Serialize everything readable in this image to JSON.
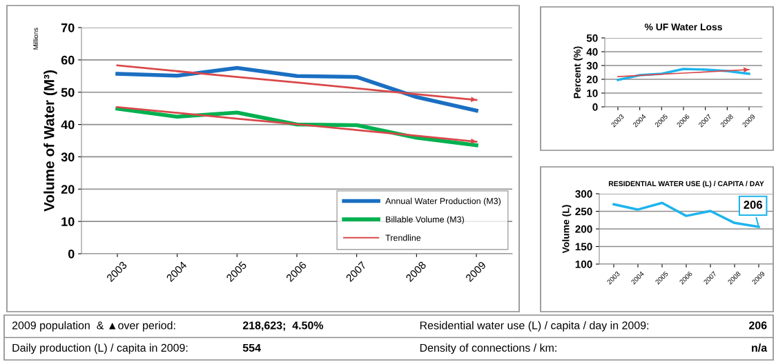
{
  "chart_data": [
    {
      "type": "line",
      "categories": [
        "2003",
        "2004",
        "2005",
        "2006",
        "2007",
        "2008",
        "2009"
      ],
      "ylabel": "Volume of Water (M³)",
      "ylim": [
        0,
        70
      ],
      "yticks": [
        0,
        10,
        20,
        30,
        40,
        50,
        60,
        70
      ],
      "grid": "y",
      "legend": "bottom right",
      "annotations": [
        "Millions"
      ],
      "series": [
        {
          "name": "Annual Water Production (M3)",
          "color": "#1a6fc2",
          "values": [
            55.7,
            55.1,
            57.5,
            55.0,
            54.7,
            48.5,
            44.3
          ]
        },
        {
          "name": "Billable Volume (M3)",
          "color": "#00b050",
          "values": [
            44.9,
            42.4,
            43.7,
            40.0,
            39.8,
            35.9,
            33.6
          ]
        },
        {
          "name": "Trendline",
          "color": "#d9484a",
          "line_style": "solid",
          "values": [
            58.3,
            56.5,
            54.7,
            53.0,
            51.2,
            49.4,
            47.6
          ]
        },
        {
          "color": "#d9484a",
          "line_style": "solid",
          "values": [
            45.4,
            43.6,
            41.8,
            40.1,
            38.3,
            36.5,
            34.7
          ]
        }
      ]
    },
    {
      "type": "line",
      "title": "% UF Water Loss",
      "categories": [
        "2003",
        "2004",
        "2005",
        "2006",
        "2007",
        "2008",
        "2009"
      ],
      "ylabel": "Percent (%)",
      "ylim": [
        0,
        50
      ],
      "yticks": [
        0,
        10,
        20,
        30,
        40,
        50
      ],
      "grid": "y",
      "series": [
        {
          "color": "#1db4ec",
          "values": [
            19.5,
            23.0,
            24.0,
            27.5,
            27.0,
            26.0,
            24.0
          ]
        },
        {
          "color": "#d9484a",
          "line_style": "solid",
          "values": [
            22.0,
            22.8,
            23.7,
            24.5,
            25.3,
            26.2,
            27.0
          ]
        }
      ]
    },
    {
      "type": "line",
      "title": "RESIDENTIAL WATER USE (L) / CAPITA / DAY",
      "categories": [
        "2003",
        "2004",
        "2005",
        "2006",
        "2007",
        "2008",
        "2009"
      ],
      "ylabel": "Volume (L)",
      "ylim": [
        100,
        300
      ],
      "yticks": [
        100,
        150,
        200,
        250,
        300
      ],
      "grid": "y",
      "annotations": [
        {
          "text": "206",
          "x": "2009",
          "y": 206
        }
      ],
      "series": [
        {
          "color": "#1db4ec",
          "values": [
            270,
            255,
            274,
            237,
            251,
            217,
            206
          ]
        }
      ]
    },
    {
      "type": "other",
      "annotations": [
        "2009 population  & ▲over period:",
        "218,623;  4.50%",
        "Residential water use (L) / capita / day in 2009:",
        "206",
        "Daily production (L) / capita in 2009:",
        "554",
        "Density of connections / km:",
        "n/a"
      ]
    }
  ]
}
